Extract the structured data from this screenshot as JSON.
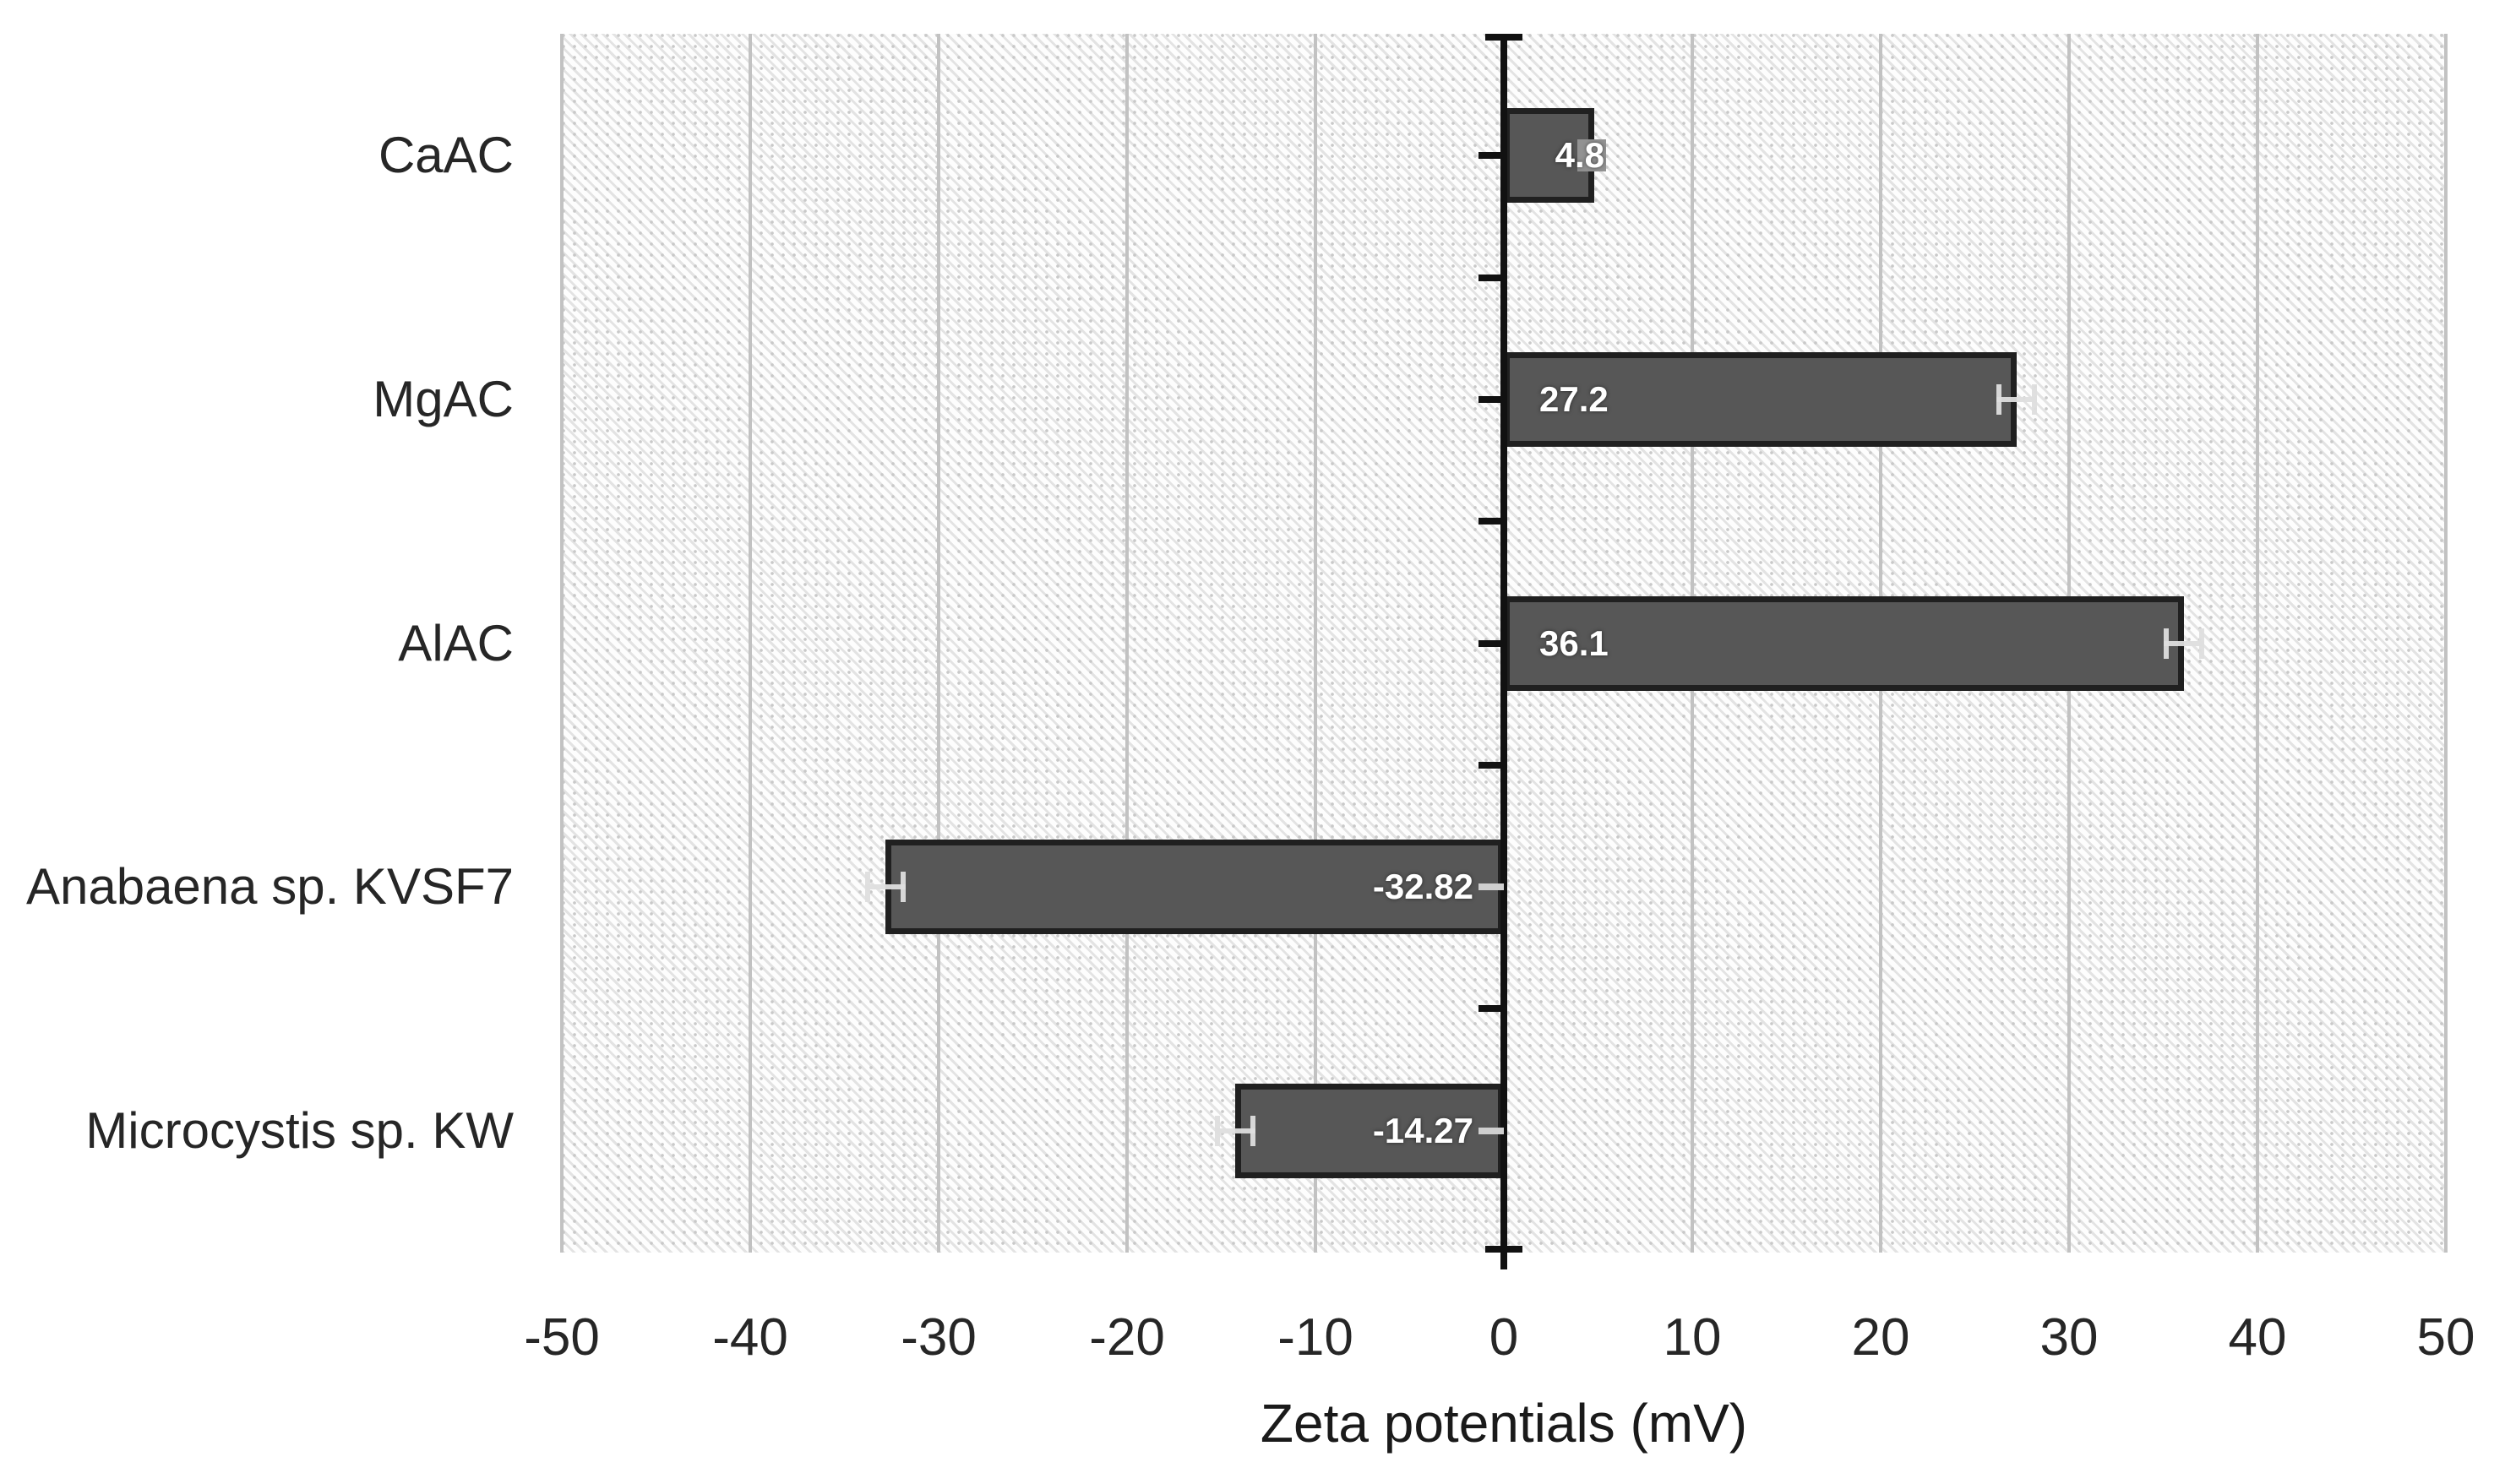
{
  "chart_data": {
    "type": "bar",
    "orientation": "horizontal",
    "title": "",
    "xlabel": "Zeta potentials (mV)",
    "ylabel": "",
    "categories": [
      "CaAC",
      "MgAC",
      "AlAC",
      "Anabaena sp. KVSF7",
      "Microcystis sp. KW"
    ],
    "values": [
      4.8,
      27.2,
      36.1,
      -32.82,
      -14.27
    ],
    "value_labels": [
      "4.8",
      "27.2",
      "36.1",
      "-32.82",
      "-14.27"
    ],
    "xlim": [
      -50,
      50
    ],
    "xticks": [
      -50,
      -40,
      -30,
      -20,
      -10,
      0,
      10,
      20,
      30,
      40,
      50
    ],
    "grid": true,
    "error_bars": true,
    "legend": "none",
    "colors": {
      "bar_fill": "#575757",
      "bar_border": "#202020",
      "gridline": "#c2c2c2",
      "axis": "#111111",
      "plot_hatch_bg": "#fdfdfd",
      "value_label_text": "#ffffff"
    }
  }
}
